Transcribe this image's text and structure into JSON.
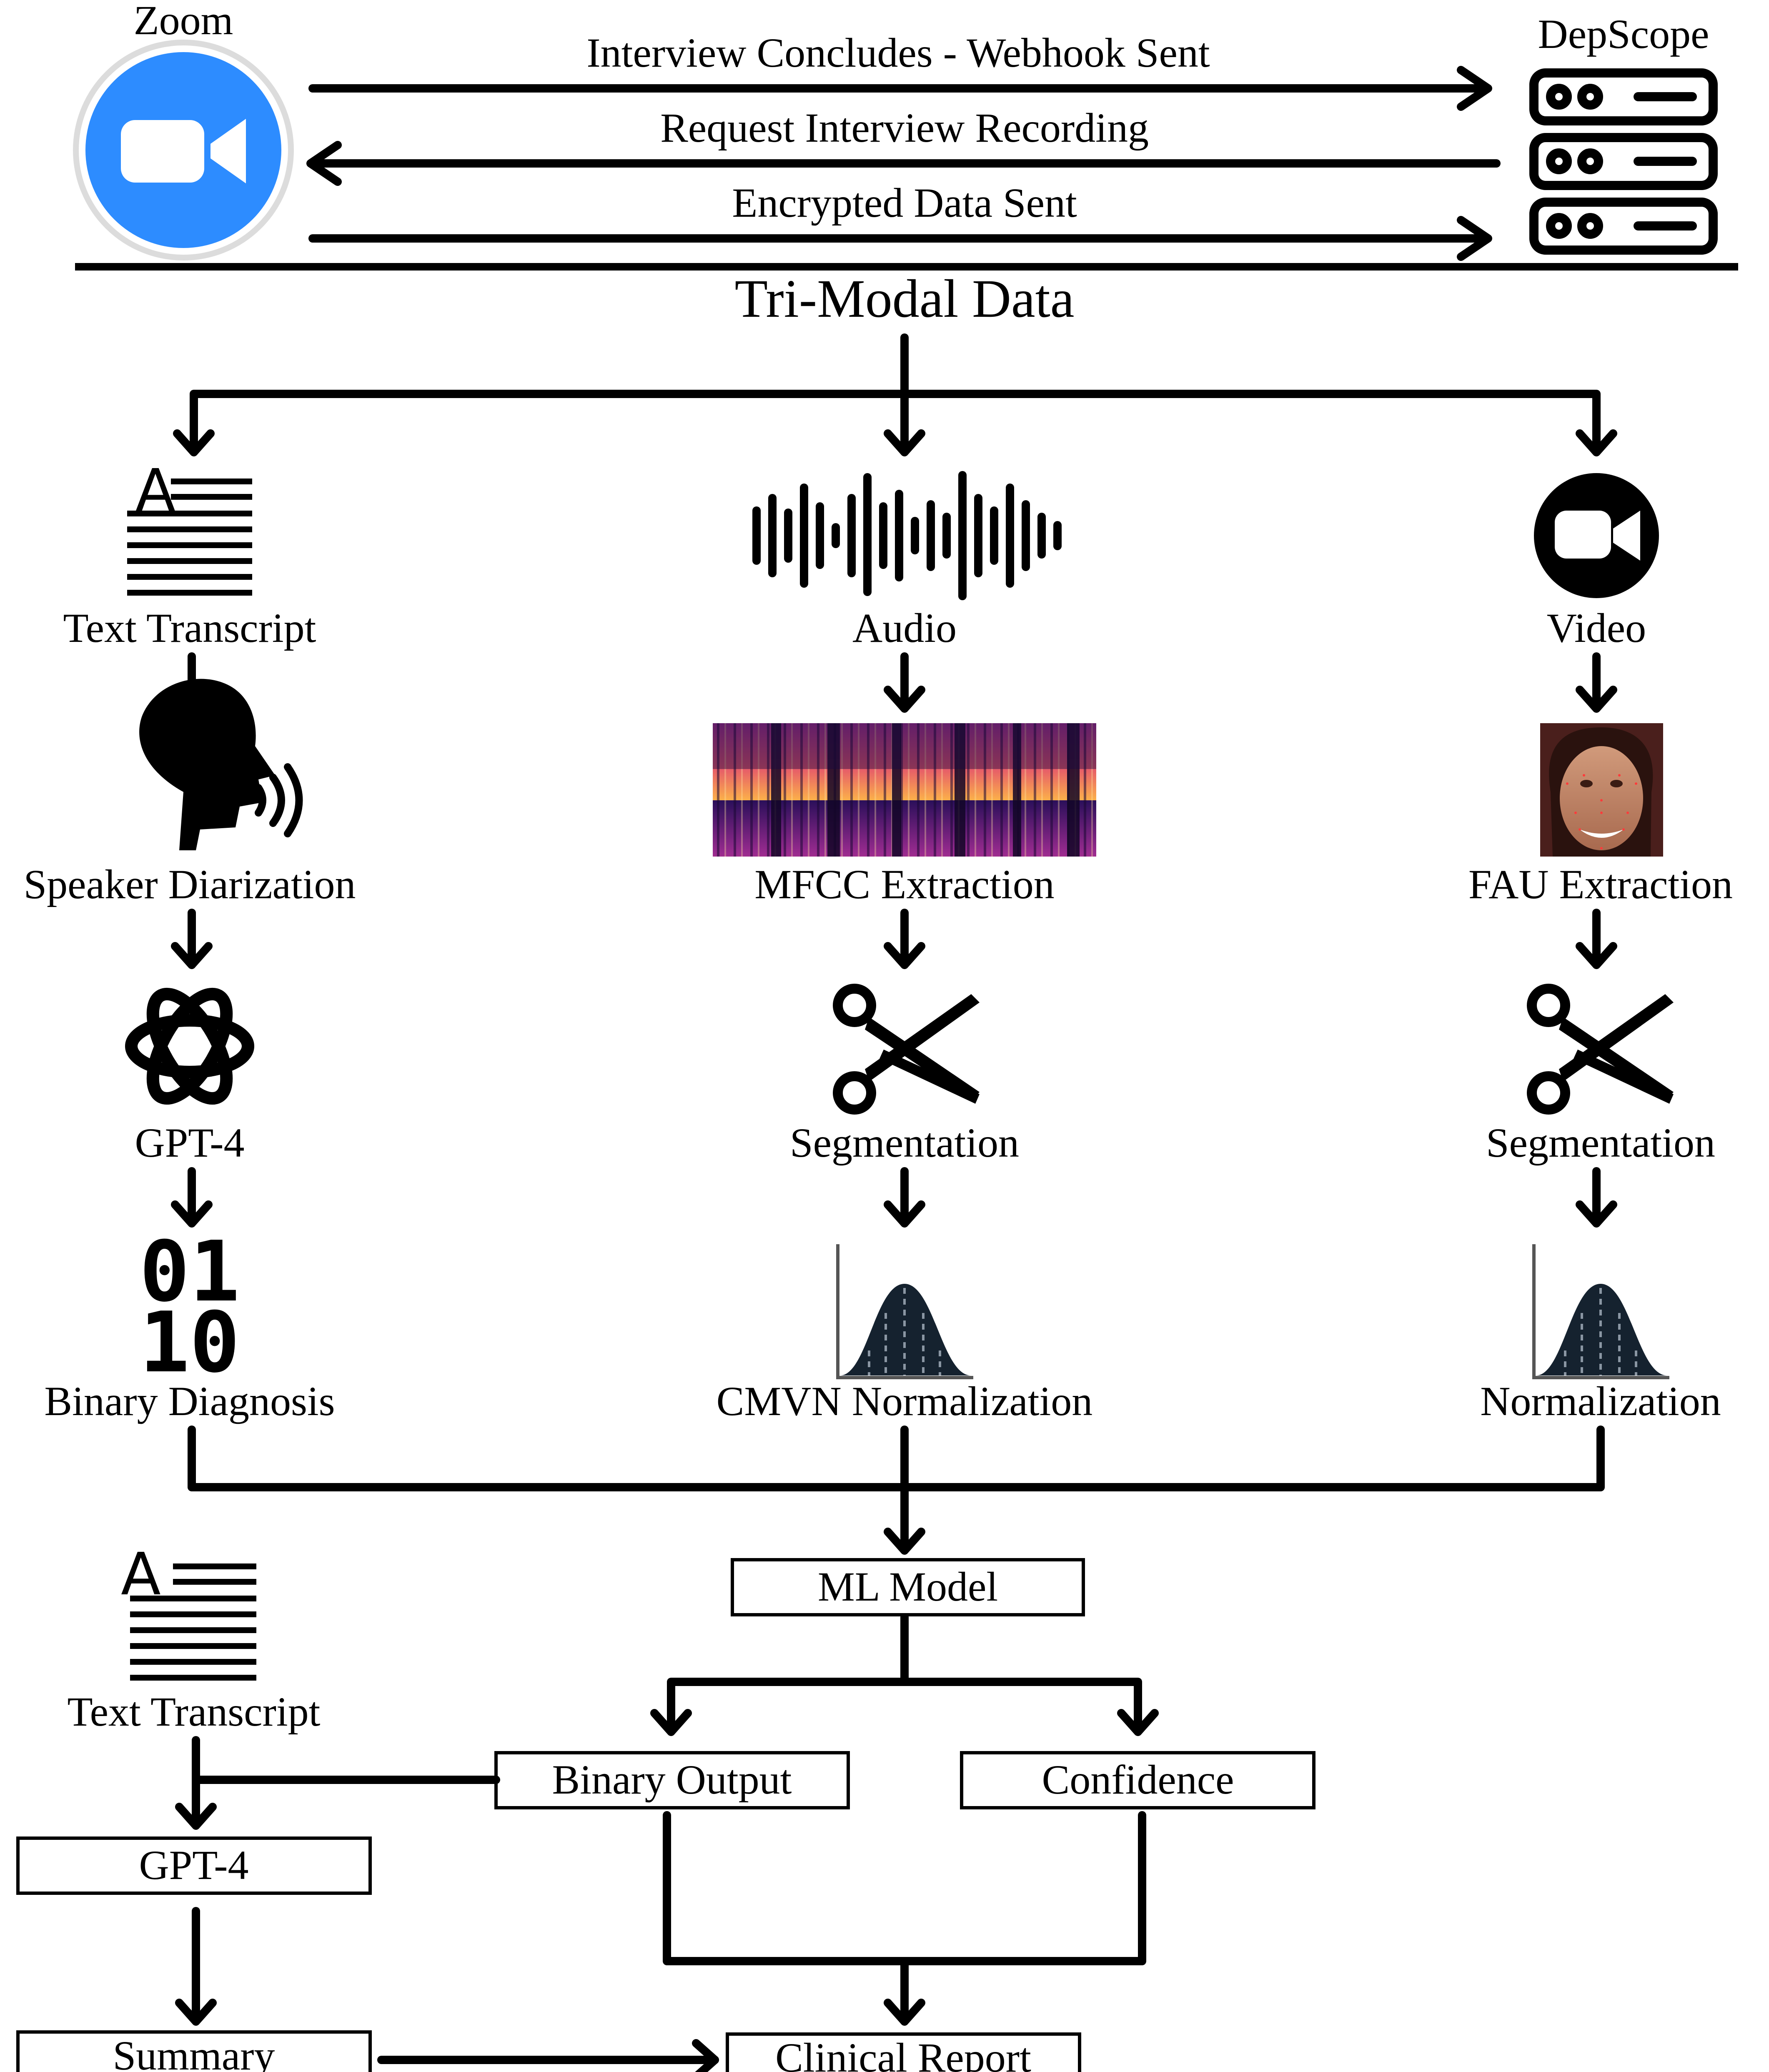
{
  "header": {
    "zoom_label": "Zoom",
    "server_label": "DepScope",
    "arrow1_label": "Interview Concludes - Webhook Sent",
    "arrow2_label": "Request Interview Recording",
    "arrow3_label": "Encrypted Data Sent"
  },
  "trimodal_title": "Tri-Modal Data",
  "text_branch": {
    "source": "Text Transcript",
    "step1": "Speaker Diarization",
    "step2": "GPT-4",
    "step3": "Binary Diagnosis",
    "glyph_a": "A",
    "binary_row1": "01",
    "binary_row2": "10"
  },
  "audio_branch": {
    "source": "Audio",
    "step1": "MFCC Extraction",
    "step2": "Segmentation",
    "step3": "CMVN Normalization"
  },
  "video_branch": {
    "source": "Video",
    "step1": "FAU Extraction",
    "step2": "Segmentation",
    "step3": "Normalization"
  },
  "model": {
    "ml_model": "ML Model",
    "binary_output": "Binary Output",
    "confidence": "Confidence"
  },
  "report": {
    "transcript": "Text Transcript",
    "glyph_a": "A",
    "gpt4": "GPT-4",
    "summary": "Summary",
    "clinical_report": "Clinical Report"
  },
  "colors": {
    "zoom_blue": "#2D8CFF",
    "ink": "#000000"
  }
}
